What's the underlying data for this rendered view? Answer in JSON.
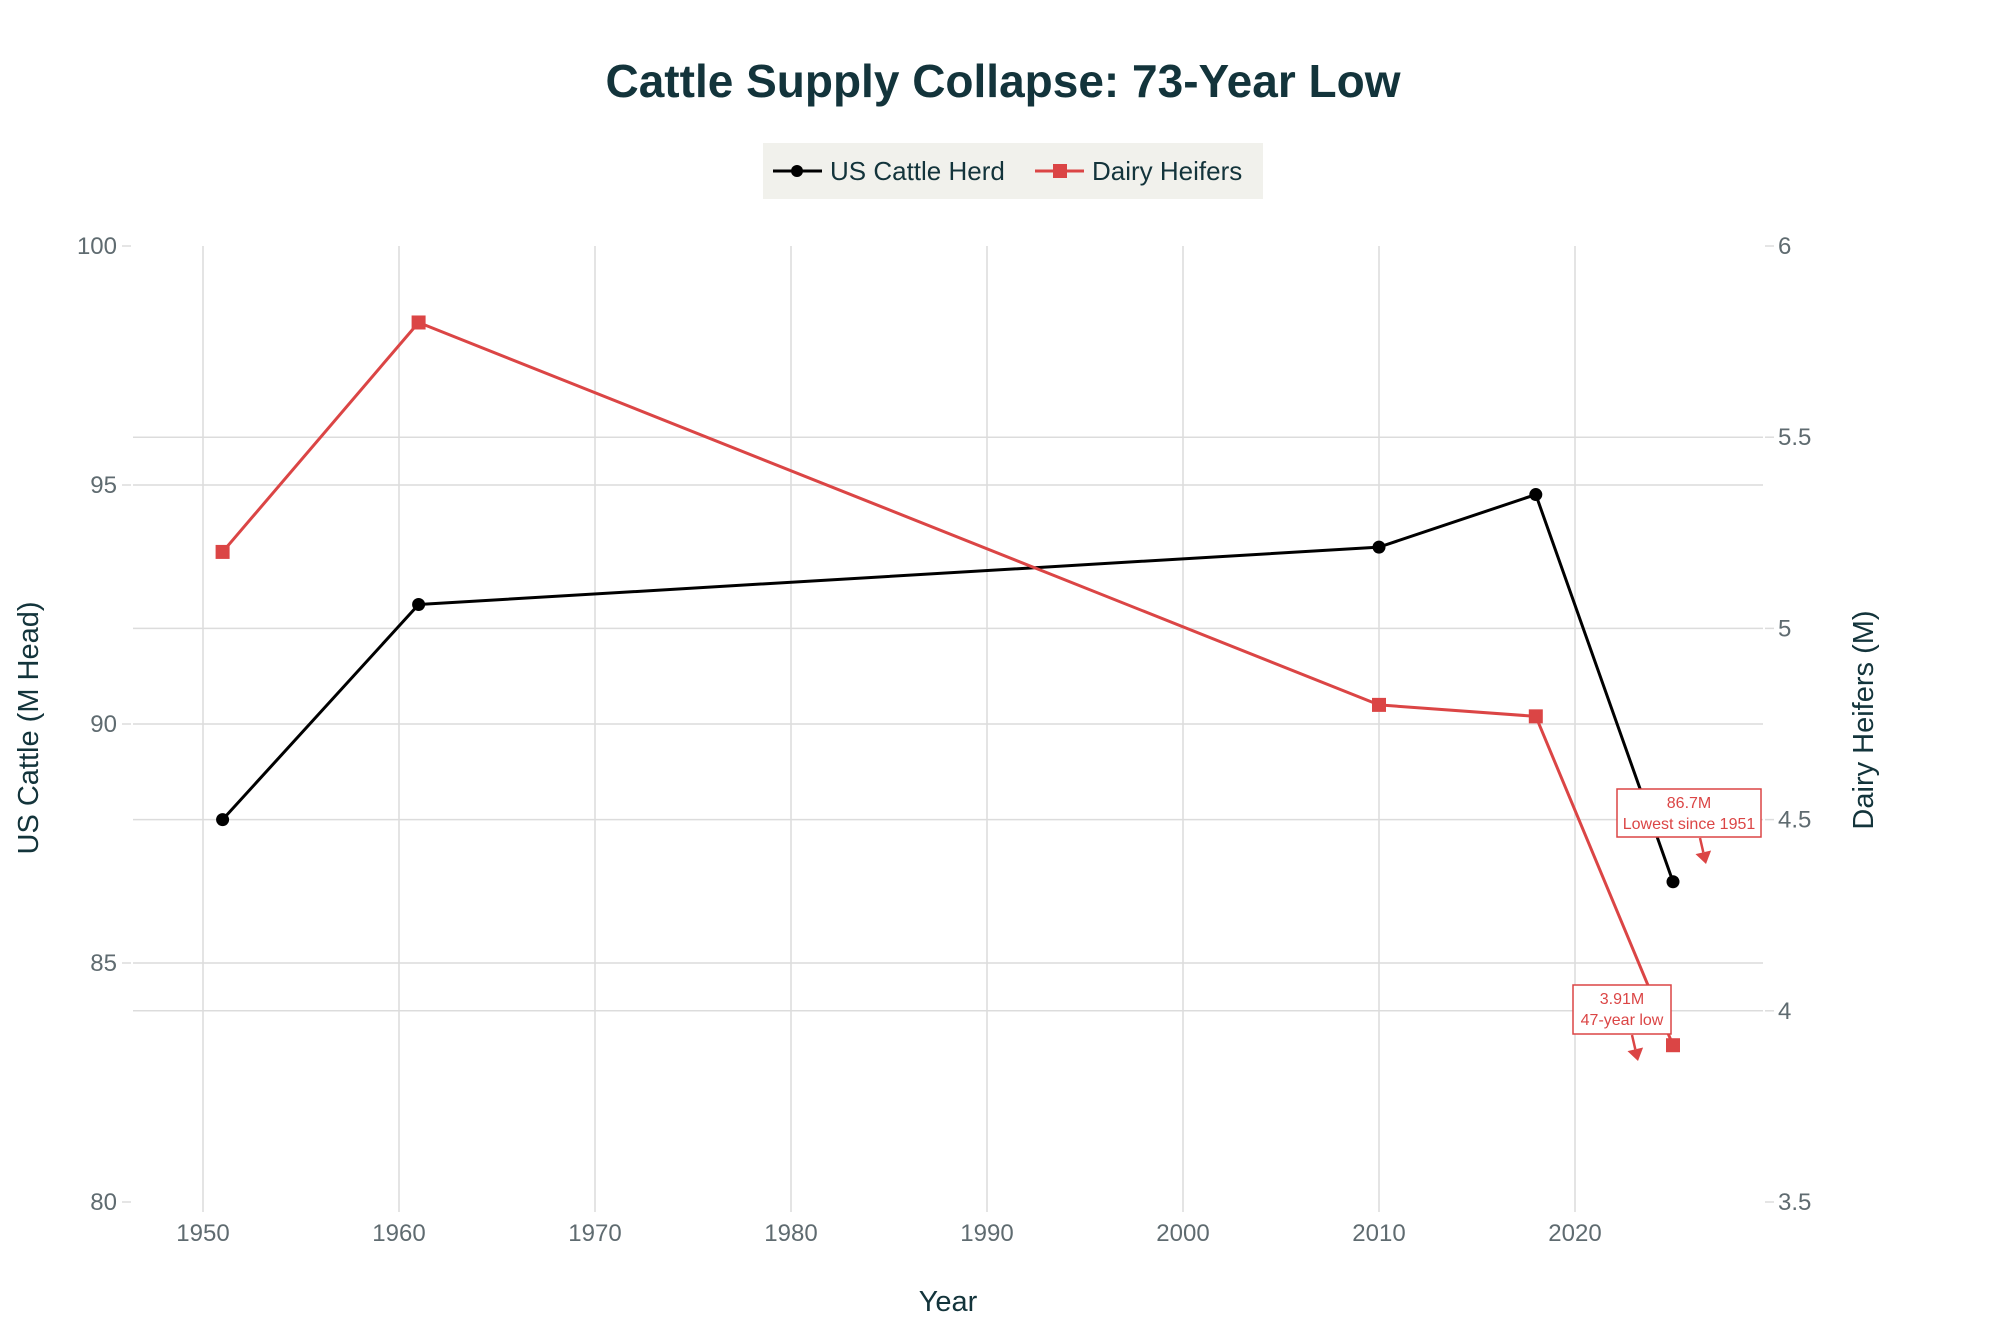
{
  "chart_data": {
    "type": "line",
    "title": "Cattle Supply Collapse: 73-Year Low",
    "xlabel": "Year",
    "ylabel": "US Cattle (M Head)",
    "y2label": "Dairy Heifers (M)",
    "xlim": [
      1945.3,
      2029.4
    ],
    "ylim": [
      80,
      100
    ],
    "y2lim": [
      3.5,
      6
    ],
    "x_ticks": [
      1950,
      1960,
      1970,
      1980,
      1990,
      2000,
      2010,
      2020
    ],
    "x_tick_labels": [
      "1950",
      "1960",
      "1970",
      "1980",
      "1990",
      "2000",
      "2010",
      "2020"
    ],
    "y_ticks": [
      80,
      85,
      90,
      95,
      100
    ],
    "y_tick_labels": [
      "80",
      "85",
      "90",
      "95",
      "100"
    ],
    "y2_ticks": [
      3.5,
      4,
      4.5,
      5,
      5.5,
      6
    ],
    "y2_tick_labels": [
      "3.5",
      "4",
      "4.5",
      "5",
      "5.5",
      "6"
    ],
    "grid": true,
    "legend_position": "top-center",
    "series": [
      {
        "name": "US Cattle Herd",
        "axis": "left",
        "marker": "circle",
        "color": "#000000",
        "x": [
          1951,
          1961,
          2010,
          2018,
          2025
        ],
        "values": [
          88.0,
          92.5,
          93.7,
          94.8,
          86.7
        ]
      },
      {
        "name": "Dairy Heifers",
        "axis": "right",
        "marker": "square",
        "color": "#db4545",
        "x": [
          1951,
          1961,
          2010,
          2018,
          2025
        ],
        "values": [
          5.2,
          5.8,
          4.8,
          4.77,
          3.91
        ]
      }
    ],
    "annotations": [
      {
        "series": 0,
        "x": 2025,
        "lines": [
          "86.7M",
          "Lowest since 1951"
        ],
        "color": "#db4545"
      },
      {
        "series": 1,
        "x": 2025,
        "lines": [
          "3.91M",
          "47-year low"
        ],
        "color": "#db4545"
      }
    ]
  },
  "legend": {
    "background": "#f1f1ec",
    "items": [
      "US Cattle Herd",
      "Dairy Heifers"
    ]
  }
}
